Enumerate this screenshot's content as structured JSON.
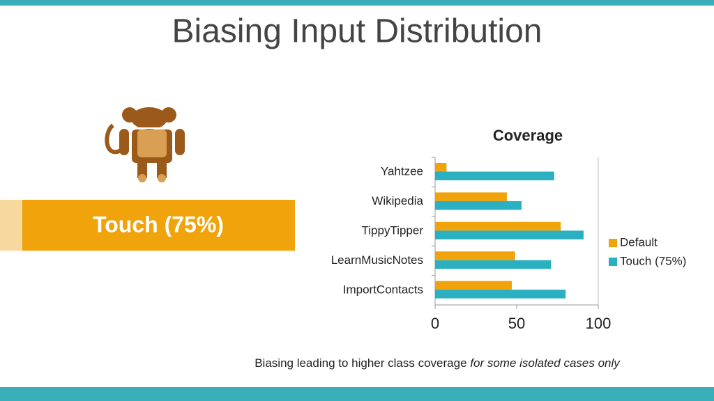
{
  "slide": {
    "title": "Biasing Input Distribution",
    "label": "Touch (75%)",
    "caption": "Biasing leading to higher class coverage",
    "caption_italic": "for some isolated cases only"
  },
  "chart_data": {
    "type": "hbar",
    "title": "Coverage",
    "categories": [
      "Yahtzee",
      "Wikipedia",
      "TippyTipper",
      "LearnMusicNotes",
      "ImportContacts"
    ],
    "series": [
      {
        "name": "Default",
        "color": "#f0a30a",
        "values": [
          7,
          44,
          77,
          49,
          47
        ]
      },
      {
        "name": "Touch (75%)",
        "color": "#2ab0c0",
        "values": [
          73,
          53,
          91,
          71,
          80
        ]
      }
    ],
    "xlim": [
      0,
      100
    ],
    "xticks": [
      0,
      50,
      100
    ],
    "grid": false,
    "legend": "right"
  }
}
